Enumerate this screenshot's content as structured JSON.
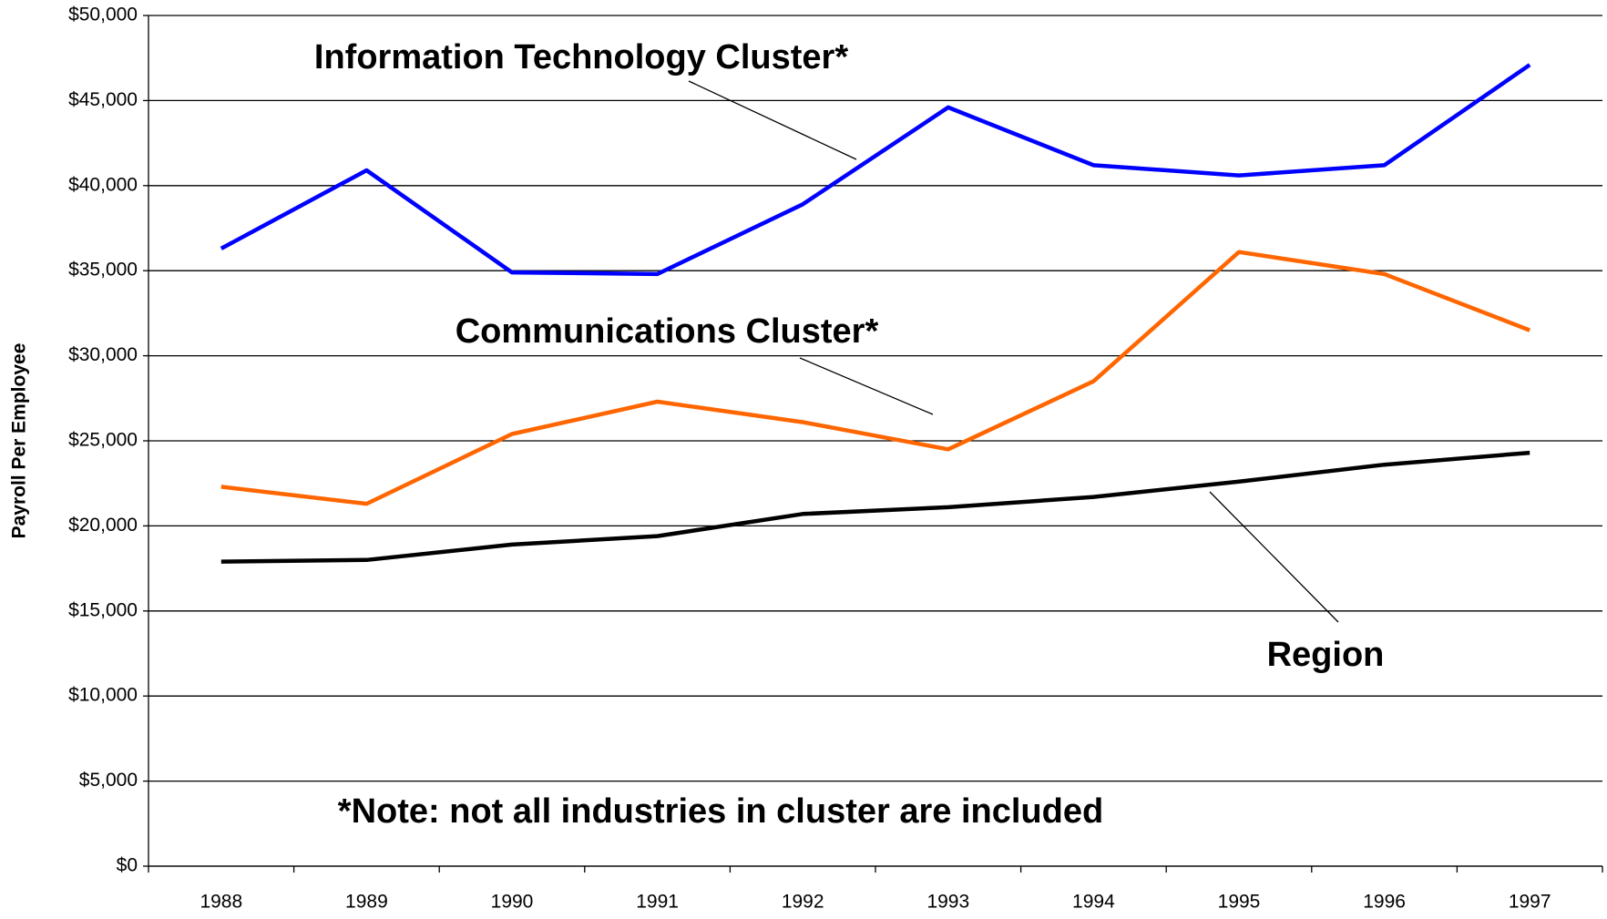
{
  "chart_data": {
    "type": "line",
    "y_label": "Payroll Per Employee",
    "categories": [
      "1988",
      "1989",
      "1990",
      "1991",
      "1992",
      "1993",
      "1994",
      "1995",
      "1996",
      "1997"
    ],
    "series": [
      {
        "name": "Information Technology Cluster*",
        "color": "#0000ff",
        "values": [
          36300,
          40900,
          34900,
          34800,
          38900,
          44600,
          41200,
          40600,
          41200,
          47100
        ]
      },
      {
        "name": "Communications Cluster*",
        "color": "#ff6600",
        "values": [
          22300,
          21300,
          25400,
          27300,
          26100,
          24500,
          28500,
          36100,
          34800,
          31500
        ]
      },
      {
        "name": "Region",
        "color": "#000000",
        "values": [
          17900,
          18000,
          18900,
          19400,
          20700,
          21100,
          21700,
          22600,
          23600,
          24300
        ]
      }
    ],
    "annotations": [
      "*Note: not all industries in cluster are included"
    ],
    "ylim": [
      0,
      50000
    ],
    "yticks": [
      {
        "value": 0,
        "label": "$0"
      },
      {
        "value": 5000,
        "label": "$5,000"
      },
      {
        "value": 10000,
        "label": "$10,000"
      },
      {
        "value": 15000,
        "label": "$15,000"
      },
      {
        "value": 20000,
        "label": "$20,000"
      },
      {
        "value": 25000,
        "label": "$25,000"
      },
      {
        "value": 30000,
        "label": "$30,000"
      },
      {
        "value": 35000,
        "label": "$35,000"
      },
      {
        "value": 40000,
        "label": "$40,000"
      },
      {
        "value": 45000,
        "label": "$45,000"
      },
      {
        "value": 50000,
        "label": "$50,000"
      }
    ],
    "grid": true
  }
}
